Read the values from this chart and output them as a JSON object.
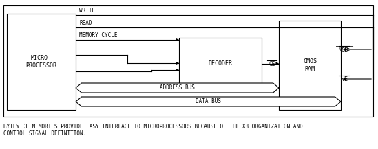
{
  "bg_color": "#ffffff",
  "border_color": "#000000",
  "text_color": "#000000",
  "fig_width": 5.49,
  "fig_height": 2.17,
  "caption": "BYTEWIDE MEMORIES PROVIDE EASY INTERFACE TO MICROPROCESSORS BECAUSE OF THE X8 ORGANIZATION AND\nCONTROL SIGNAL DEFINITION.",
  "micro_label": "MICRO-\nPROCESSOR",
  "decoder_label": "DECODER",
  "cmos_label": "CMOS\nRAM"
}
